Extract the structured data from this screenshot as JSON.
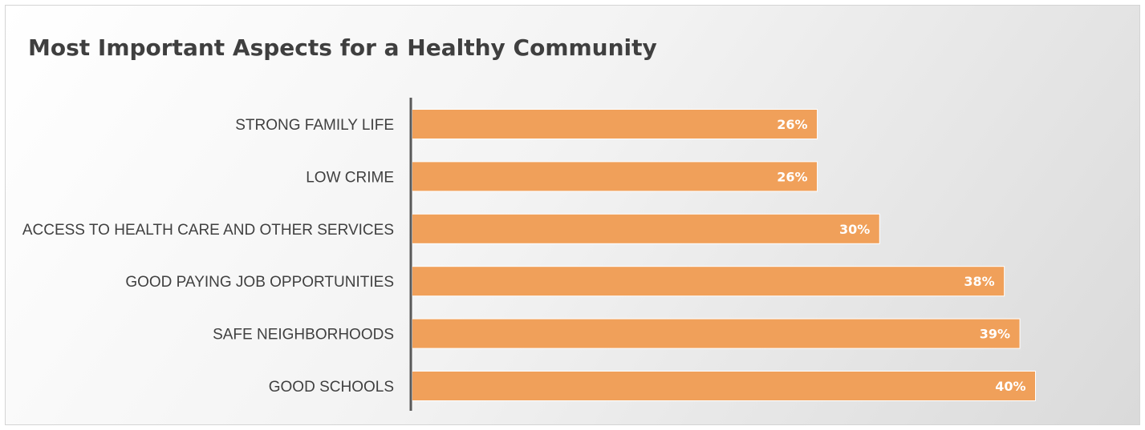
{
  "chart_data": {
    "type": "bar",
    "orientation": "horizontal",
    "title": "Most Important Aspects for a Healthy Community",
    "categories": [
      "STRONG FAMILY LIFE",
      "LOW CRIME",
      "ACCESS TO HEALTH CARE AND OTHER SERVICES",
      "GOOD PAYING JOB OPPORTUNITIES",
      "SAFE NEIGHBORHOODS",
      "GOOD SCHOOLS"
    ],
    "values": [
      26,
      26,
      30,
      38,
      39,
      40
    ],
    "value_labels": [
      "26%",
      "26%",
      "30%",
      "38%",
      "39%",
      "40%"
    ],
    "xlim": [
      0,
      40
    ],
    "grid": false,
    "legend": "none",
    "bar_color": "#f0a05a",
    "axis_color": "#595959"
  }
}
